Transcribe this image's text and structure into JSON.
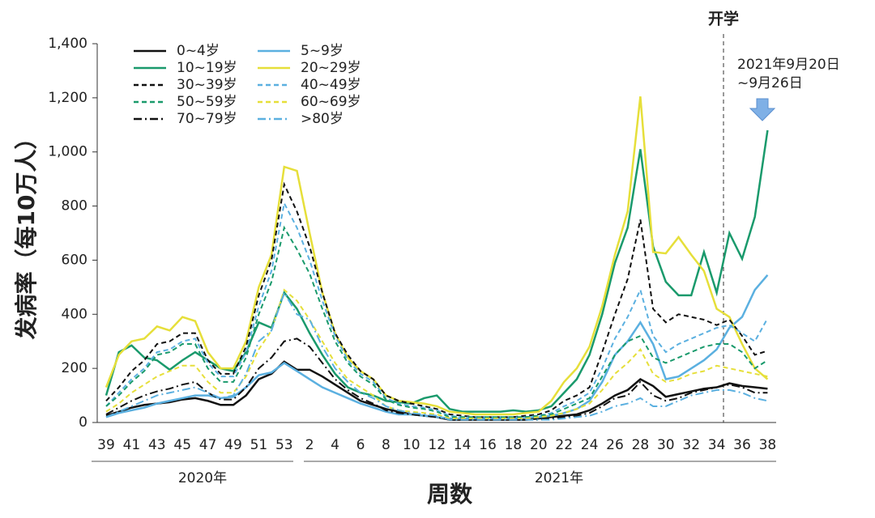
{
  "chart_data": {
    "type": "line",
    "y_label": "发病率（每10万人）",
    "x_label": "周数",
    "groups": [
      "2020年",
      "2021年"
    ],
    "annotations": [
      "开学",
      "2021年9月20日",
      "~9月26日"
    ],
    "categories": [
      39,
      null,
      41,
      null,
      43,
      null,
      45,
      null,
      47,
      null,
      49,
      null,
      51,
      null,
      53,
      null,
      2,
      null,
      4,
      null,
      6,
      null,
      8,
      null,
      10,
      null,
      12,
      null,
      14,
      null,
      16,
      null,
      18,
      null,
      20,
      null,
      22,
      null,
      24,
      null,
      26,
      null,
      28,
      null,
      30,
      null,
      32,
      null,
      34,
      null,
      36,
      null,
      38
    ],
    "ylim": [
      0,
      1400
    ],
    "yticks": [
      0,
      200,
      400,
      600,
      800,
      {
        "value": 1000,
        "label": "1,000"
      },
      {
        "value": 1200,
        "label": "1,200"
      },
      {
        "value": 1400,
        "label": "1,400"
      }
    ],
    "series": [
      {
        "name": "0~4岁",
        "color": "#111111",
        "dash": "solid",
        "values": [
          25,
          40,
          55,
          65,
          70,
          75,
          85,
          90,
          80,
          65,
          65,
          100,
          160,
          180,
          225,
          195,
          195,
          170,
          140,
          110,
          80,
          65,
          50,
          40,
          30,
          25,
          20,
          10,
          10,
          10,
          10,
          10,
          10,
          10,
          15,
          20,
          25,
          30,
          45,
          70,
          100,
          120,
          160,
          135,
          95,
          105,
          115,
          125,
          130,
          145,
          135,
          130,
          125
        ]
      },
      {
        "name": "5~9岁",
        "color": "#5bb0e0",
        "dash": "solid",
        "values": [
          20,
          35,
          45,
          55,
          70,
          80,
          90,
          100,
          100,
          90,
          95,
          130,
          175,
          185,
          220,
          190,
          160,
          130,
          110,
          90,
          70,
          55,
          40,
          30,
          30,
          25,
          20,
          15,
          15,
          15,
          15,
          15,
          15,
          20,
          20,
          25,
          35,
          50,
          80,
          150,
          250,
          300,
          370,
          290,
          160,
          170,
          200,
          230,
          270,
          350,
          390,
          490,
          545
        ]
      },
      {
        "name": "10~19岁",
        "color": "#1a9a6c",
        "dash": "solid",
        "values": [
          100,
          260,
          285,
          240,
          230,
          195,
          230,
          260,
          230,
          200,
          190,
          260,
          370,
          350,
          480,
          420,
          330,
          250,
          180,
          130,
          110,
          100,
          80,
          75,
          70,
          90,
          100,
          50,
          40,
          40,
          40,
          40,
          45,
          40,
          45,
          60,
          110,
          160,
          250,
          400,
          590,
          720,
          1010,
          650,
          520,
          470,
          470,
          630,
          480,
          700,
          605,
          760,
          1080
        ]
      },
      {
        "name": "20~29岁",
        "color": "#e6df3a",
        "dash": "solid",
        "values": [
          130,
          250,
          300,
          310,
          355,
          340,
          390,
          375,
          260,
          200,
          200,
          300,
          500,
          620,
          945,
          930,
          700,
          480,
          330,
          240,
          190,
          160,
          100,
          80,
          75,
          70,
          60,
          40,
          35,
          30,
          30,
          30,
          30,
          35,
          40,
          80,
          150,
          200,
          280,
          430,
          620,
          780,
          1205,
          630,
          625,
          685,
          620,
          560,
          420,
          390,
          290,
          200,
          160
        ]
      },
      {
        "name": "30~39岁",
        "color": "#111111",
        "dash": "dashed",
        "values": [
          80,
          130,
          190,
          230,
          290,
          300,
          330,
          330,
          230,
          180,
          180,
          280,
          470,
          600,
          880,
          780,
          650,
          480,
          330,
          250,
          190,
          160,
          100,
          80,
          70,
          60,
          50,
          30,
          25,
          20,
          20,
          20,
          20,
          25,
          30,
          45,
          80,
          100,
          130,
          260,
          400,
          530,
          750,
          420,
          370,
          400,
          390,
          380,
          360,
          380,
          320,
          250,
          265
        ]
      },
      {
        "name": "40~49岁",
        "color": "#5bb0e0",
        "dash": "dashed",
        "values": [
          60,
          110,
          160,
          200,
          260,
          270,
          300,
          310,
          220,
          170,
          170,
          260,
          430,
          560,
          810,
          720,
          600,
          450,
          320,
          230,
          180,
          150,
          90,
          70,
          60,
          55,
          45,
          25,
          20,
          20,
          20,
          20,
          20,
          20,
          25,
          35,
          60,
          80,
          110,
          200,
          310,
          390,
          490,
          320,
          260,
          290,
          310,
          330,
          350,
          360,
          330,
          300,
          385
        ]
      },
      {
        "name": "50~59岁",
        "color": "#1a9a6c",
        "dash": "dashed",
        "values": [
          60,
          100,
          150,
          190,
          250,
          260,
          290,
          290,
          200,
          150,
          150,
          240,
          400,
          520,
          720,
          640,
          550,
          420,
          300,
          220,
          170,
          140,
          85,
          65,
          55,
          50,
          40,
          20,
          20,
          20,
          20,
          20,
          20,
          20,
          25,
          30,
          50,
          70,
          90,
          170,
          250,
          300,
          320,
          240,
          220,
          240,
          260,
          280,
          290,
          290,
          260,
          200,
          230
        ]
      },
      {
        "name": "60~69岁",
        "color": "#e6df3a",
        "dash": "dashed",
        "values": [
          40,
          70,
          110,
          140,
          170,
          190,
          210,
          210,
          150,
          110,
          110,
          170,
          270,
          340,
          490,
          450,
          380,
          300,
          220,
          160,
          130,
          100,
          60,
          45,
          40,
          35,
          30,
          15,
          15,
          15,
          15,
          15,
          15,
          15,
          20,
          25,
          35,
          50,
          70,
          120,
          180,
          220,
          270,
          180,
          150,
          160,
          180,
          190,
          210,
          200,
          190,
          180,
          170
        ]
      },
      {
        "name": "70~79岁",
        "color": "#111111",
        "dash": "dashdot",
        "values": [
          30,
          55,
          80,
          100,
          115,
          125,
          140,
          150,
          110,
          85,
          85,
          130,
          200,
          240,
          300,
          310,
          280,
          220,
          160,
          120,
          90,
          70,
          45,
          35,
          30,
          25,
          20,
          10,
          10,
          10,
          10,
          10,
          10,
          10,
          10,
          15,
          20,
          25,
          35,
          60,
          90,
          100,
          150,
          100,
          80,
          90,
          110,
          120,
          130,
          140,
          130,
          110,
          110
        ]
      },
      {
        "name": ">80岁",
        "color": "#5bb0e0",
        "dash": "dashdot",
        "values": [
          20,
          40,
          60,
          80,
          100,
          110,
          120,
          130,
          110,
          90,
          100,
          180,
          300,
          340,
          480,
          400,
          380,
          280,
          200,
          150,
          110,
          90,
          60,
          45,
          35,
          30,
          25,
          10,
          10,
          10,
          10,
          10,
          10,
          10,
          10,
          10,
          15,
          20,
          25,
          40,
          60,
          70,
          90,
          60,
          60,
          80,
          100,
          110,
          120,
          120,
          110,
          90,
          80
        ]
      }
    ]
  }
}
